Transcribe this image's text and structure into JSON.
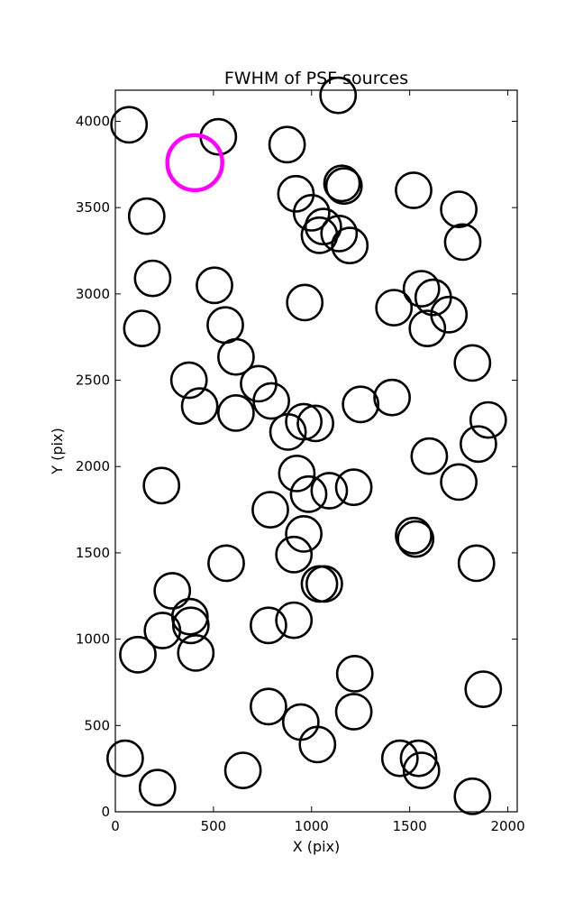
{
  "chart_data": {
    "type": "scatter",
    "title": "FWHM of PSF sources",
    "xlabel": "X (pix)",
    "ylabel": "Y (pix)",
    "xlim": [
      0,
      2048
    ],
    "ylim": [
      0,
      4180
    ],
    "xticks": [
      0,
      500,
      1000,
      1500,
      2000
    ],
    "yticks": [
      0,
      500,
      1000,
      1500,
      2000,
      2500,
      3000,
      3500,
      4000
    ],
    "grid": false,
    "marker": "open-circle",
    "source_radius": 90,
    "highlight_radius": 140,
    "series": [
      {
        "color": "#000000",
        "points": [
          [
            70,
            3980
          ],
          [
            525,
            3910
          ],
          [
            875,
            3865
          ],
          [
            1135,
            4150
          ],
          [
            1155,
            3640
          ],
          [
            1165,
            3625
          ],
          [
            920,
            3580
          ],
          [
            1000,
            3470
          ],
          [
            1060,
            3390
          ],
          [
            1040,
            3340
          ],
          [
            1140,
            3350
          ],
          [
            1195,
            3280
          ],
          [
            160,
            3450
          ],
          [
            1520,
            3600
          ],
          [
            1750,
            3490
          ],
          [
            1770,
            3300
          ],
          [
            190,
            3090
          ],
          [
            505,
            3050
          ],
          [
            965,
            2950
          ],
          [
            560,
            2820
          ],
          [
            135,
            2800
          ],
          [
            615,
            2635
          ],
          [
            1420,
            2920
          ],
          [
            1560,
            3030
          ],
          [
            1620,
            2980
          ],
          [
            1590,
            2800
          ],
          [
            1700,
            2880
          ],
          [
            1820,
            2600
          ],
          [
            375,
            2500
          ],
          [
            430,
            2350
          ],
          [
            615,
            2310
          ],
          [
            730,
            2480
          ],
          [
            795,
            2380
          ],
          [
            880,
            2200
          ],
          [
            960,
            2260
          ],
          [
            1020,
            2250
          ],
          [
            1250,
            2360
          ],
          [
            1410,
            2400
          ],
          [
            1600,
            2060
          ],
          [
            1750,
            1910
          ],
          [
            1850,
            2130
          ],
          [
            1900,
            2270
          ],
          [
            235,
            1890
          ],
          [
            925,
            1960
          ],
          [
            985,
            1840
          ],
          [
            1090,
            1860
          ],
          [
            1215,
            1880
          ],
          [
            790,
            1750
          ],
          [
            960,
            1610
          ],
          [
            1520,
            1600
          ],
          [
            1530,
            1580
          ],
          [
            565,
            1440
          ],
          [
            910,
            1490
          ],
          [
            1040,
            1320
          ],
          [
            1065,
            1320
          ],
          [
            1840,
            1440
          ],
          [
            290,
            1280
          ],
          [
            380,
            1130
          ],
          [
            385,
            1080
          ],
          [
            240,
            1050
          ],
          [
            410,
            920
          ],
          [
            115,
            910
          ],
          [
            780,
            1080
          ],
          [
            910,
            1110
          ],
          [
            1220,
            800
          ],
          [
            1875,
            710
          ],
          [
            780,
            610
          ],
          [
            945,
            520
          ],
          [
            1030,
            390
          ],
          [
            1215,
            580
          ],
          [
            50,
            310
          ],
          [
            215,
            140
          ],
          [
            650,
            240
          ],
          [
            1450,
            310
          ],
          [
            1545,
            310
          ],
          [
            1560,
            240
          ],
          [
            1820,
            90
          ]
        ]
      },
      {
        "color": "#ff00ff",
        "points": [
          [
            405,
            3760
          ]
        ]
      }
    ]
  }
}
